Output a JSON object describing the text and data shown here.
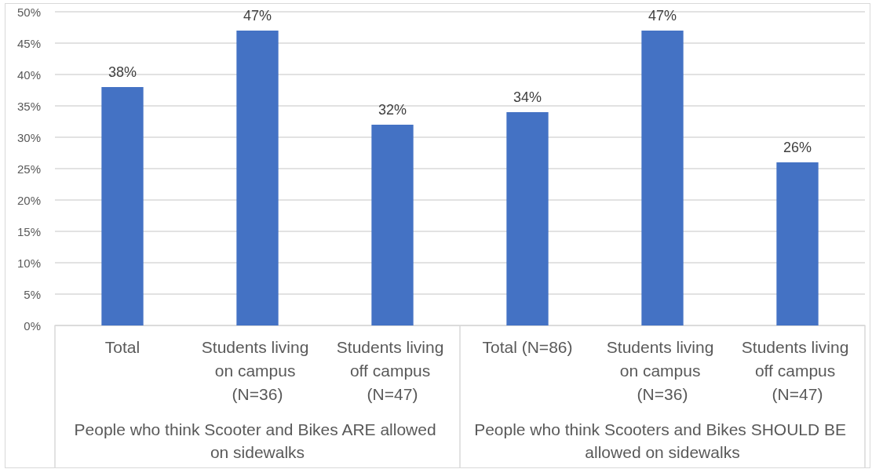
{
  "chart_data": {
    "type": "bar",
    "categories": [
      "Total",
      "Students living on campus (N=36)",
      "Students living off campus (N=47)",
      "Total (N=86)",
      "Students living on campus (N=36)",
      "Students living off campus (N=47)"
    ],
    "values": [
      38,
      47,
      32,
      34,
      47,
      26
    ],
    "value_labels": [
      "38%",
      "47%",
      "32%",
      "34%",
      "47%",
      "26%"
    ],
    "color": "#4472c4",
    "ylim": [
      0,
      50
    ],
    "yticks": [
      {
        "value": 0,
        "label": "0%"
      },
      {
        "value": 5,
        "label": "5%"
      },
      {
        "value": 10,
        "label": "10%"
      },
      {
        "value": 15,
        "label": "15%"
      },
      {
        "value": 20,
        "label": "20%"
      },
      {
        "value": 25,
        "label": "25%"
      },
      {
        "value": 30,
        "label": "30%"
      },
      {
        "value": 35,
        "label": "35%"
      },
      {
        "value": 40,
        "label": "40%"
      },
      {
        "value": 45,
        "label": "45%"
      },
      {
        "value": 50,
        "label": "50%"
      }
    ],
    "grid": "y",
    "annotations": [
      "People who think Scooter and Bikes ARE allowed on sidewalks",
      "People who think Scooters and Bikes SHOULD BE allowed on sidewalks"
    ]
  }
}
